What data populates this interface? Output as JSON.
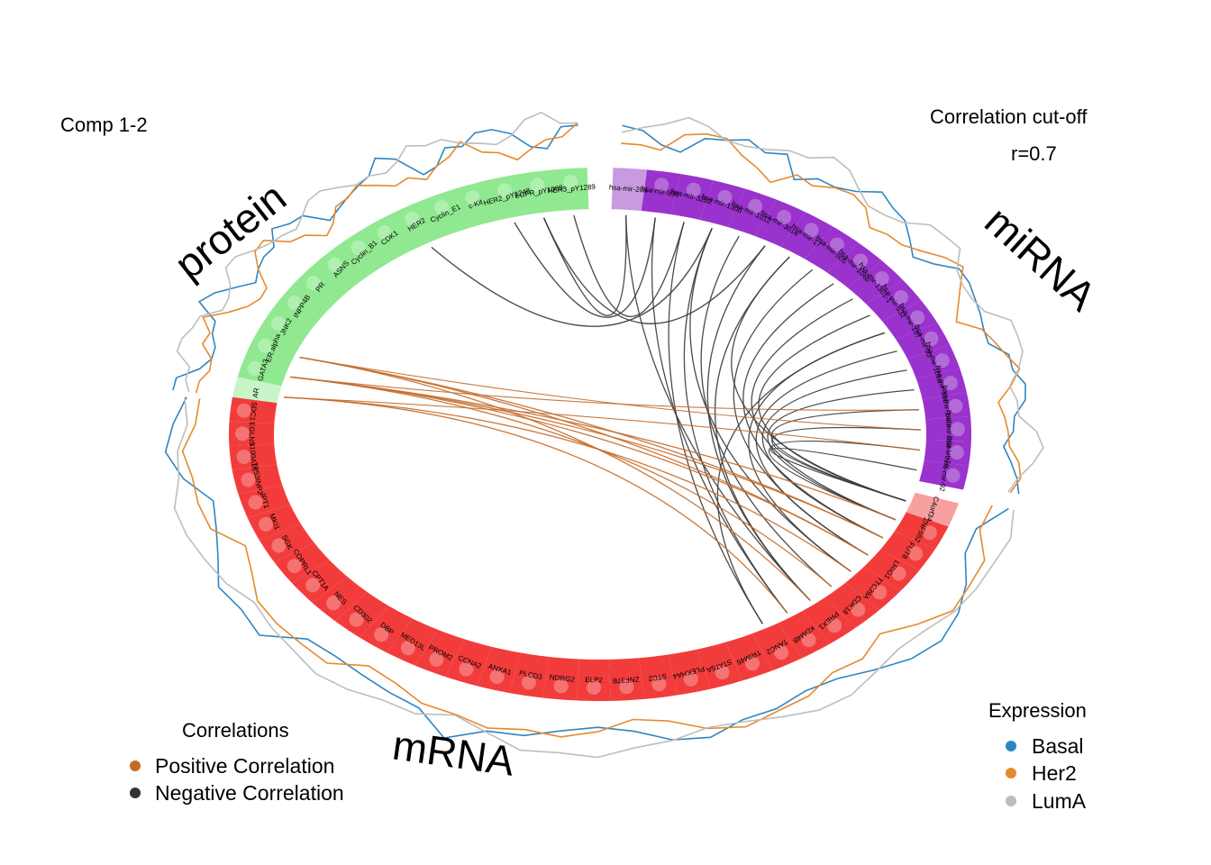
{
  "header": {
    "comp_label": "Comp 1-2",
    "cutoff_title": "Correlation cut-off",
    "cutoff_value": "r=0.7"
  },
  "blocks": {
    "protein": "protein",
    "mirna": "miRNA",
    "mrna": "mRNA"
  },
  "features": {
    "protein": [
      "AR",
      "GATA3",
      "ER.alpha",
      "JNK2",
      "INPP4B",
      "PR",
      "ASNS",
      "Cyclin_B1",
      "CDK1",
      "HER2",
      "Cyclin_E1",
      "c-Kit",
      "HER2_pY1248",
      "EGFR_pY1068",
      "HER3_pY1289"
    ],
    "mirna": [
      "hsa-mir-20a",
      "hsa-mir-590",
      "hsa-mir-3202",
      "hsa-mir-130b",
      "hsa-mir-1012",
      "hsa-mir-301a",
      "hsa-mir-17",
      "hsa-mir-505",
      "hsa-mir-106b",
      "hsa-mir-1301-1",
      "hsa-mir-532",
      "hsa-mir-197",
      "hsa-mir-93",
      "hsa-mir-106a",
      "hsa-mir-186",
      "hsa-mir-148a",
      "hsa-mir-20a",
      "hsa-let-7e",
      "hsa-mir-92"
    ],
    "mrna": [
      "C4orf34",
      "ZNF552",
      "FUT8",
      "LRIG1",
      "TTC39A",
      "CDK18",
      "PREX1",
      "KDM4B",
      "TANC2",
      "TRIM45",
      "STAT5A",
      "PLEKHA4",
      "STC2",
      "ZNF37B",
      "ELP2",
      "NDRG2",
      "PLCD3",
      "ANXA1",
      "CCNA2",
      "PROM2",
      "MED13L",
      "DBP",
      "CD302",
      "NES",
      "CPT1A",
      "COPRL1",
      "SGK",
      "MKI1",
      "JPT1",
      "TP53INP2",
      "S100A16",
      "EGLN3",
      "SDC1"
    ]
  },
  "correlation_legend": {
    "title": "Correlations",
    "items": [
      {
        "label": "Positive Correlation",
        "color": "#C46A28"
      },
      {
        "label": "Negative Correlation",
        "color": "#333333"
      }
    ]
  },
  "expression_legend": {
    "title": "Expression",
    "items": [
      {
        "label": "Basal",
        "color": "#2E86C1"
      },
      {
        "label": "Her2",
        "color": "#E8892D"
      },
      {
        "label": "LumA",
        "color": "#BDBDBD"
      }
    ]
  },
  "colors": {
    "protein_dark": "#90E890",
    "protein_light": "#C8F5C8",
    "mirna_dark": "#9A32CD",
    "mirna_light": "#C89AE0",
    "mrna_dark": "#F23C3C",
    "mrna_light": "#F8A0A0"
  }
}
